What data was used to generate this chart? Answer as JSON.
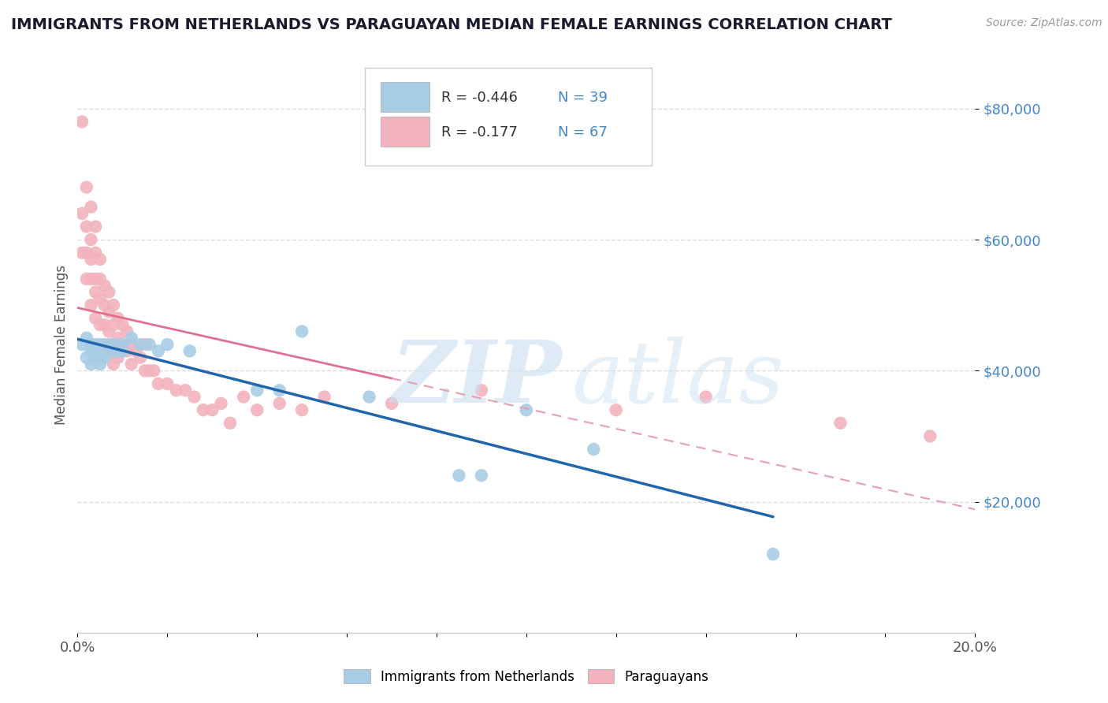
{
  "title": "IMMIGRANTS FROM NETHERLANDS VS PARAGUAYAN MEDIAN FEMALE EARNINGS CORRELATION CHART",
  "source": "Source: ZipAtlas.com",
  "ylabel": "Median Female Earnings",
  "xlim": [
    0.0,
    0.2
  ],
  "ylim": [
    0,
    88000
  ],
  "blue_color": "#a8cce4",
  "pink_color": "#f2b3be",
  "trend_blue": "#2166ac",
  "trend_pink": "#e07090",
  "trend_pink_ext": "#e8a0b0",
  "label_blue": "Immigrants from Netherlands",
  "label_pink": "Paraguayans",
  "legend_R_blue": "R = -0.446",
  "legend_N_blue": "N = 39",
  "legend_R_pink": "R = -0.177",
  "legend_N_pink": "N = 67",
  "ytick_color": "#4488cc",
  "grid_color": "#dddddd",
  "blue_x": [
    0.001,
    0.002,
    0.002,
    0.003,
    0.003,
    0.003,
    0.004,
    0.004,
    0.004,
    0.005,
    0.005,
    0.005,
    0.005,
    0.006,
    0.006,
    0.006,
    0.007,
    0.007,
    0.008,
    0.008,
    0.009,
    0.009,
    0.01,
    0.01,
    0.012,
    0.014,
    0.016,
    0.018,
    0.02,
    0.025,
    0.04,
    0.045,
    0.05,
    0.065,
    0.085,
    0.1,
    0.115,
    0.155,
    0.09
  ],
  "blue_y": [
    44000,
    45000,
    42000,
    44000,
    43000,
    41000,
    44000,
    43000,
    42000,
    44000,
    43000,
    42000,
    41000,
    44000,
    43000,
    42000,
    44000,
    43000,
    44000,
    43000,
    44000,
    43000,
    44000,
    43000,
    45000,
    44000,
    44000,
    43000,
    44000,
    43000,
    37000,
    37000,
    46000,
    36000,
    24000,
    34000,
    28000,
    12000,
    24000
  ],
  "pink_x": [
    0.001,
    0.001,
    0.001,
    0.002,
    0.002,
    0.002,
    0.002,
    0.003,
    0.003,
    0.003,
    0.003,
    0.003,
    0.004,
    0.004,
    0.004,
    0.004,
    0.004,
    0.005,
    0.005,
    0.005,
    0.005,
    0.006,
    0.006,
    0.006,
    0.007,
    0.007,
    0.007,
    0.007,
    0.008,
    0.008,
    0.008,
    0.008,
    0.009,
    0.009,
    0.009,
    0.01,
    0.01,
    0.011,
    0.011,
    0.012,
    0.012,
    0.013,
    0.014,
    0.015,
    0.015,
    0.016,
    0.017,
    0.018,
    0.02,
    0.022,
    0.024,
    0.026,
    0.028,
    0.03,
    0.032,
    0.034,
    0.037,
    0.04,
    0.045,
    0.05,
    0.055,
    0.07,
    0.09,
    0.12,
    0.14,
    0.17,
    0.19
  ],
  "pink_y": [
    78000,
    64000,
    58000,
    68000,
    62000,
    58000,
    54000,
    65000,
    60000,
    57000,
    54000,
    50000,
    62000,
    58000,
    54000,
    52000,
    48000,
    57000,
    54000,
    51000,
    47000,
    53000,
    50000,
    47000,
    52000,
    49000,
    46000,
    43000,
    50000,
    47000,
    44000,
    41000,
    48000,
    45000,
    42000,
    47000,
    44000,
    46000,
    43000,
    44000,
    41000,
    43000,
    42000,
    44000,
    40000,
    40000,
    40000,
    38000,
    38000,
    37000,
    37000,
    36000,
    34000,
    34000,
    35000,
    32000,
    36000,
    34000,
    35000,
    34000,
    36000,
    35000,
    37000,
    34000,
    36000,
    32000,
    30000
  ]
}
